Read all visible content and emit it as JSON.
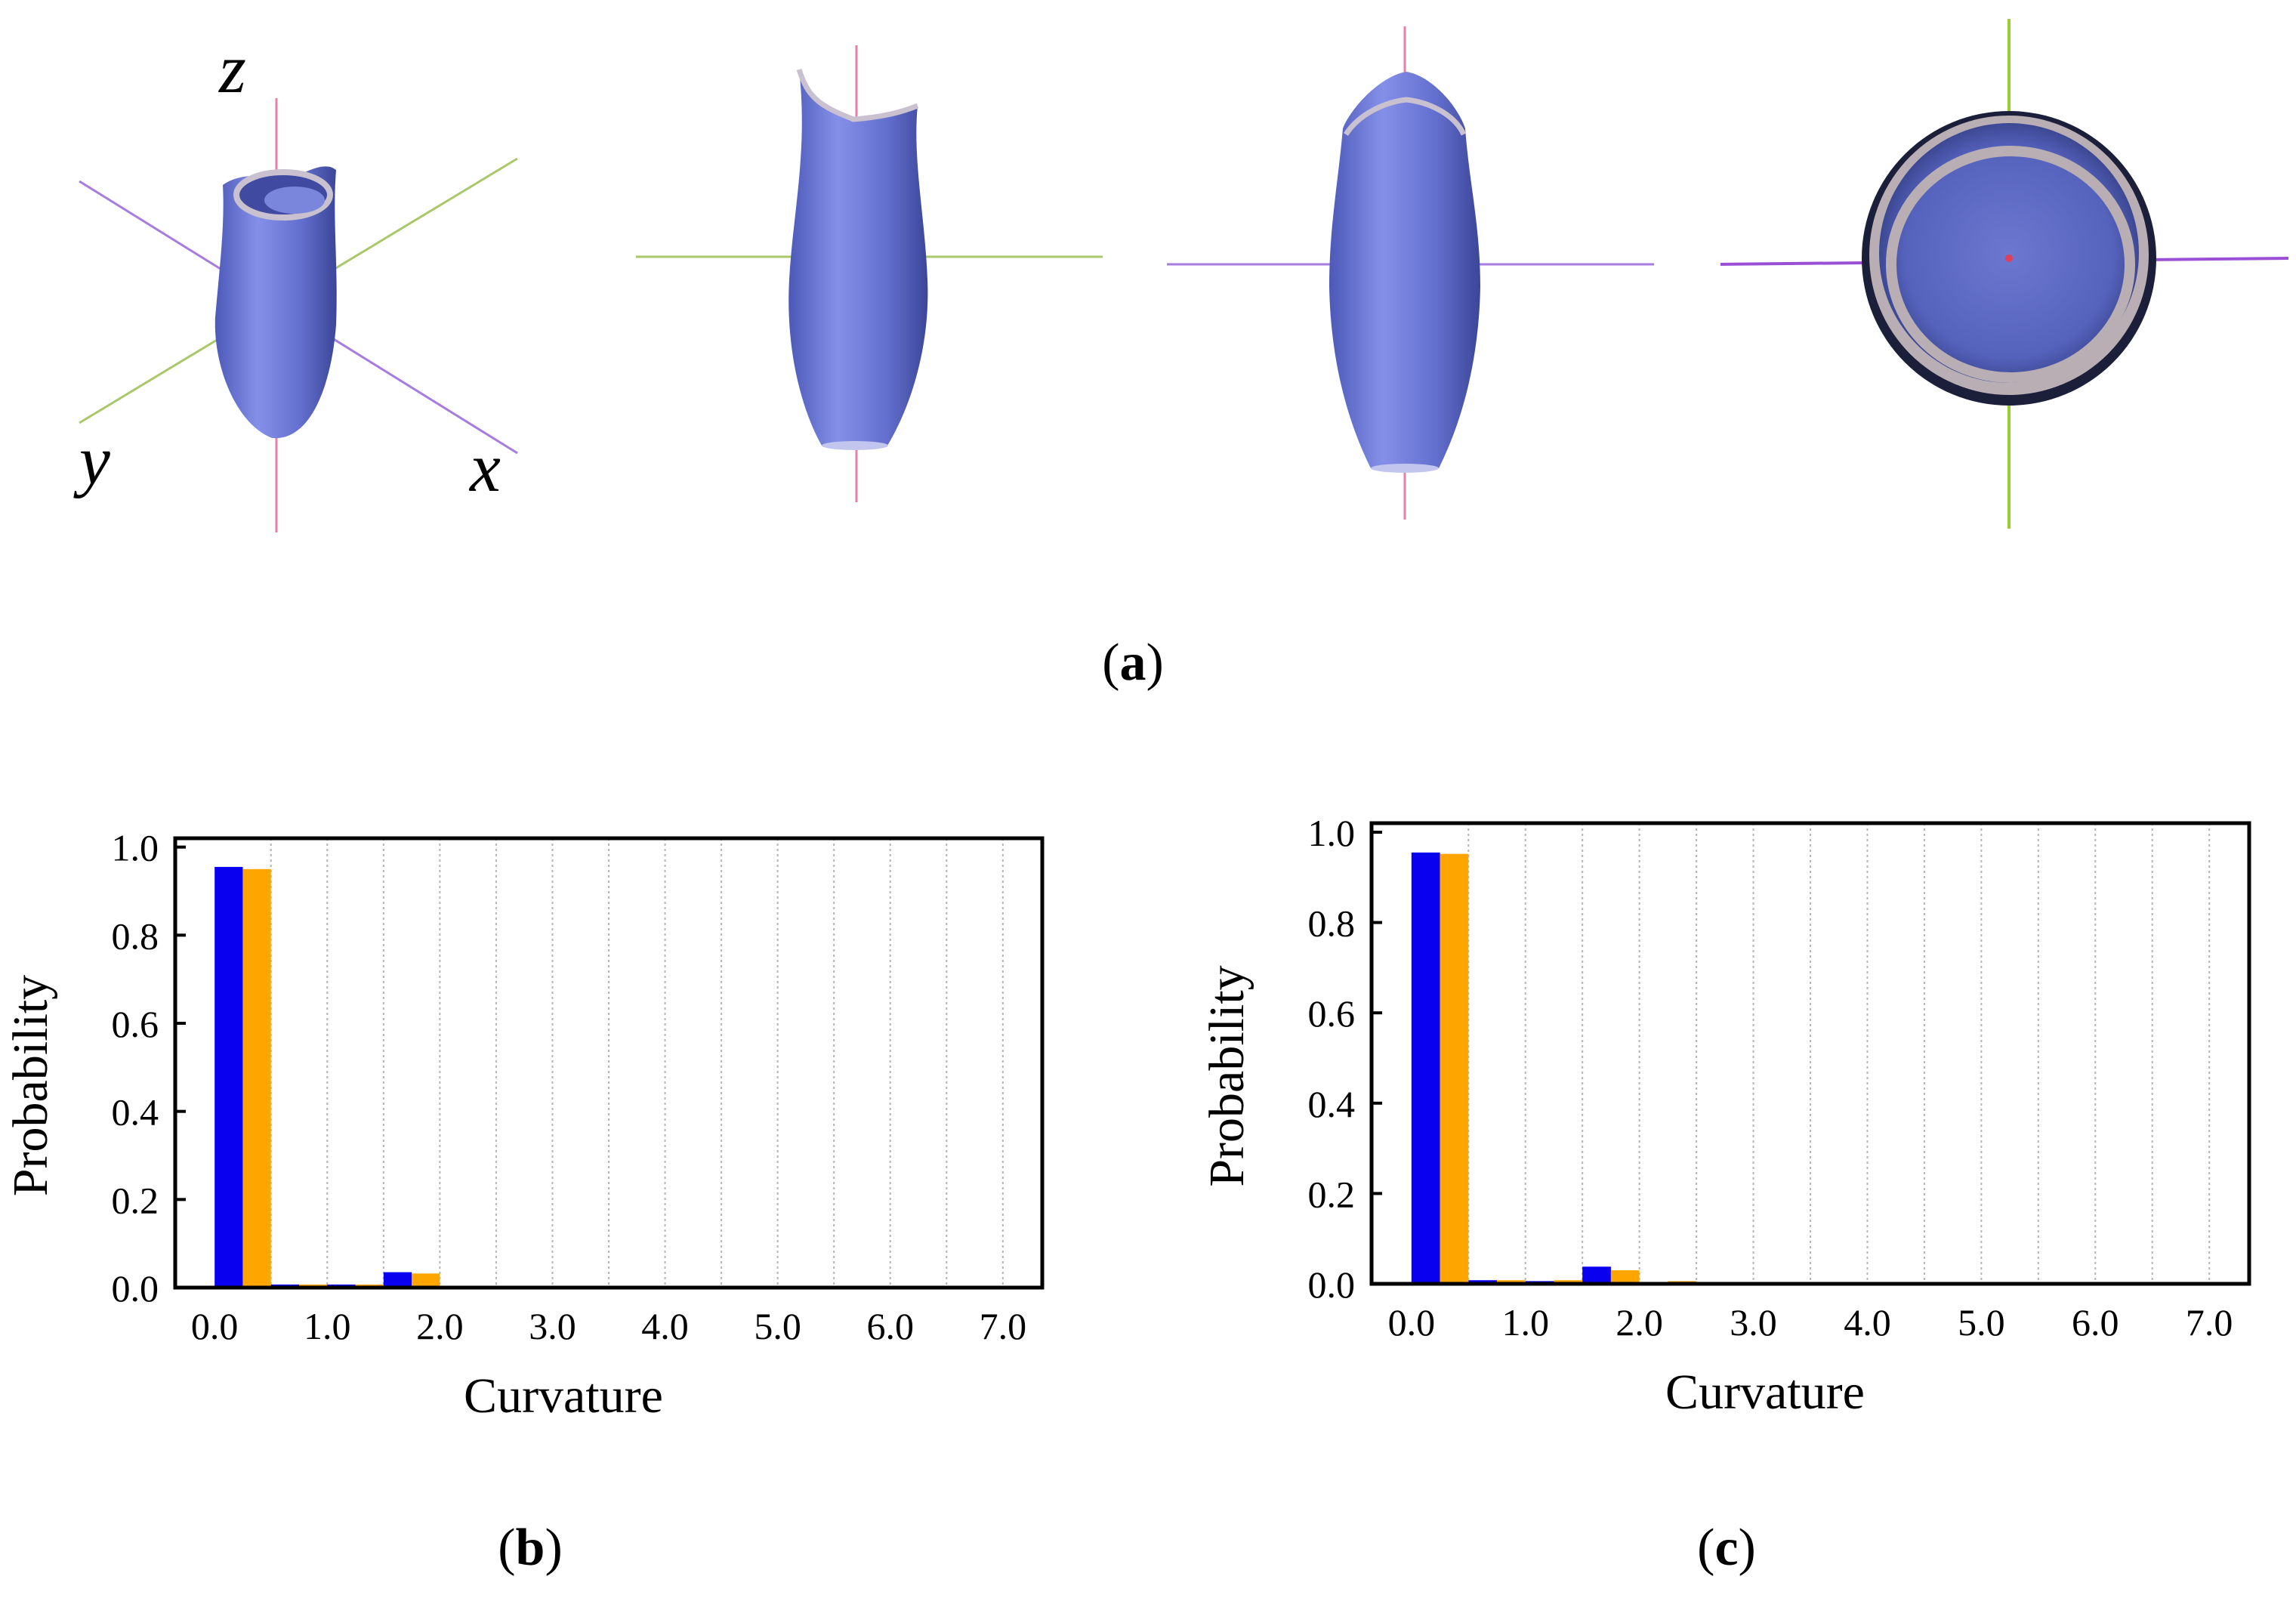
{
  "figure": {
    "panels": {
      "a": {
        "open": "(",
        "letter": "a",
        "close": ")"
      },
      "b": {
        "open": "(",
        "letter": "b",
        "close": ")"
      },
      "c": {
        "open": "(",
        "letter": "c",
        "close": ")"
      }
    },
    "axis_letters": {
      "z": "z",
      "y": "y",
      "x": "x"
    },
    "colors": {
      "series1": "#0a00f0",
      "series2": "#ffa500",
      "vase": "#6f7bd6",
      "axis_pink": "#e77fa8",
      "axis_green": "#a9c86a",
      "axis_purple": "#a77be0"
    }
  },
  "chart_data": [
    {
      "type": "bar",
      "panel": "(b)",
      "xlabel": "Curvature",
      "ylabel": "Probability",
      "x_ticks": [
        "0.0",
        "1.0",
        "2.0",
        "3.0",
        "4.0",
        "5.0",
        "6.0",
        "7.0"
      ],
      "y_ticks": [
        "0.0",
        "0.2",
        "0.4",
        "0.6",
        "0.8",
        "1.0"
      ],
      "xlim": [
        -0.35,
        7.35
      ],
      "ylim": [
        0,
        1.02
      ],
      "grid": "vertical dotted",
      "bin_width": 0.5,
      "bin_starts": [
        0.0,
        0.5,
        1.0,
        1.5,
        2.0
      ],
      "series": [
        {
          "values": [
            0.955,
            0.007,
            0.007,
            0.035,
            0.004
          ]
        },
        {
          "values": [
            0.95,
            0.007,
            0.007,
            0.032,
            0.004
          ]
        }
      ]
    },
    {
      "type": "bar",
      "panel": "(c)",
      "xlabel": "Curvature",
      "ylabel": "Probability",
      "x_ticks": [
        "0.0",
        "1.0",
        "2.0",
        "3.0",
        "4.0",
        "5.0",
        "6.0",
        "7.0"
      ],
      "y_ticks": [
        "0.0",
        "0.2",
        "0.4",
        "0.6",
        "0.8",
        "1.0"
      ],
      "xlim": [
        -0.35,
        7.35
      ],
      "ylim": [
        0,
        1.02
      ],
      "grid": "vertical dotted",
      "bin_width": 0.5,
      "bin_starts": [
        0.0,
        0.5,
        1.0,
        1.5,
        2.0
      ],
      "series": [
        {
          "values": [
            0.955,
            0.008,
            0.006,
            0.038,
            0.004
          ]
        },
        {
          "values": [
            0.952,
            0.008,
            0.008,
            0.03,
            0.006
          ]
        }
      ]
    }
  ]
}
